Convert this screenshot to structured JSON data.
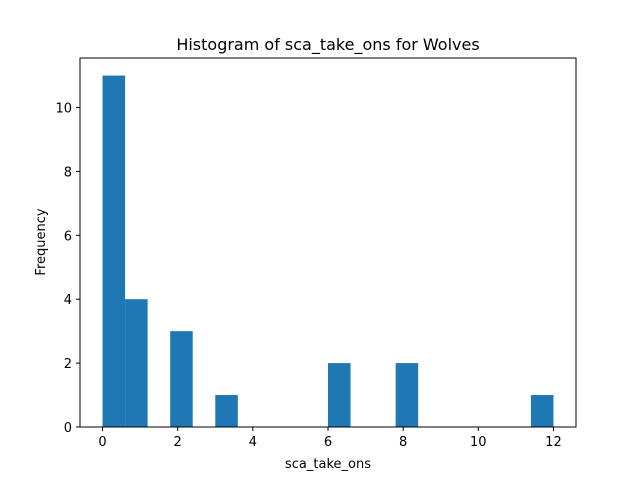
{
  "chart_data": {
    "type": "bar",
    "title": "Histogram of sca_take_ons for Wolves",
    "xlabel": "sca_take_ons",
    "ylabel": "Frequency",
    "bin_width": 0.6,
    "bins": [
      {
        "start": 0.0,
        "end": 0.6,
        "count": 11
      },
      {
        "start": 0.6,
        "end": 1.2,
        "count": 4
      },
      {
        "start": 1.2,
        "end": 1.8,
        "count": 0
      },
      {
        "start": 1.8,
        "end": 2.4,
        "count": 3
      },
      {
        "start": 2.4,
        "end": 3.0,
        "count": 0
      },
      {
        "start": 3.0,
        "end": 3.6,
        "count": 1
      },
      {
        "start": 3.6,
        "end": 4.2,
        "count": 0
      },
      {
        "start": 4.2,
        "end": 4.8,
        "count": 0
      },
      {
        "start": 4.8,
        "end": 5.4,
        "count": 0
      },
      {
        "start": 5.4,
        "end": 6.0,
        "count": 0
      },
      {
        "start": 6.0,
        "end": 6.6,
        "count": 2
      },
      {
        "start": 6.6,
        "end": 7.2,
        "count": 0
      },
      {
        "start": 7.2,
        "end": 7.8,
        "count": 0
      },
      {
        "start": 7.8,
        "end": 8.4,
        "count": 2
      },
      {
        "start": 8.4,
        "end": 9.0,
        "count": 0
      },
      {
        "start": 9.0,
        "end": 9.6,
        "count": 0
      },
      {
        "start": 9.6,
        "end": 10.2,
        "count": 0
      },
      {
        "start": 10.2,
        "end": 10.8,
        "count": 0
      },
      {
        "start": 10.8,
        "end": 11.4,
        "count": 0
      },
      {
        "start": 11.4,
        "end": 12.0,
        "count": 1
      }
    ],
    "xticks": [
      0,
      2,
      4,
      6,
      8,
      10,
      12
    ],
    "yticks": [
      0,
      2,
      4,
      6,
      8,
      10
    ],
    "xlim": [
      -0.6,
      12.6
    ],
    "ylim": [
      0,
      11.55
    ],
    "bar_color": "#1f77b4",
    "grid": false,
    "legend": false
  }
}
